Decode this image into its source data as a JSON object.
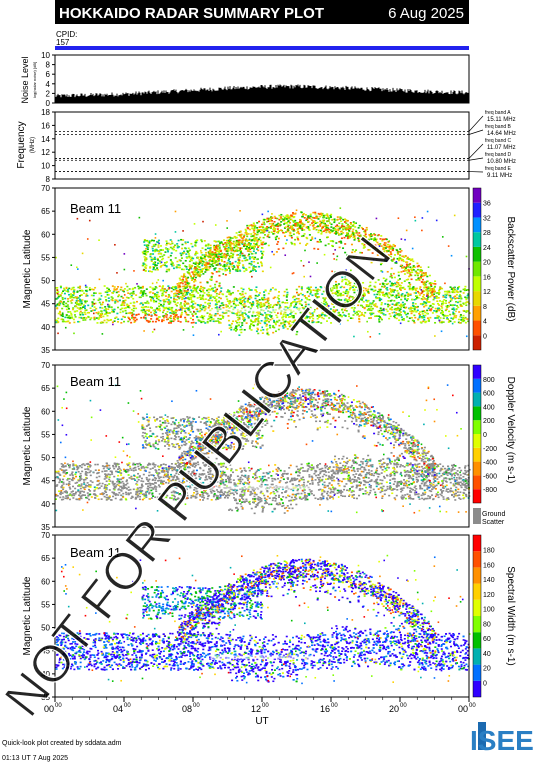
{
  "header": {
    "title": "HOKKAIDO RADAR SUMMARY PLOT",
    "date": "6 Aug 2025",
    "cpid_label": "CPID:",
    "cpid_value": "157"
  },
  "colors": {
    "header_bg": "#000000",
    "cpid_bar": "#2222ee",
    "ground_scatter": "#8c8c8c",
    "watermark": "#000000"
  },
  "watermark": "NOT FOR PUBLICATION",
  "footer": {
    "credit": "Quick-look plot created by sddata.adm",
    "timestamp": "01:13 UT  7 Aug 2025",
    "logo": "ISEE"
  },
  "x_axis": {
    "label": "UT",
    "ticks": [
      "00",
      "04",
      "08",
      "12",
      "16",
      "20",
      "00"
    ],
    "superscript": "00"
  },
  "chart_data": [
    {
      "type": "area",
      "panel": "noise",
      "ylabel": "Noise Level",
      "ylabel_sub": "log(radar noise) [dB]",
      "ylim": [
        0,
        10
      ],
      "yticks": [
        "0",
        "2",
        "4",
        "6",
        "8",
        "10"
      ],
      "x": [
        0,
        2,
        4,
        6,
        8,
        10,
        12,
        14,
        16,
        18,
        20,
        22,
        24
      ],
      "values": [
        1.0,
        1.2,
        1.4,
        1.8,
        2.2,
        2.6,
        2.9,
        3.0,
        2.8,
        2.5,
        2.2,
        1.9,
        1.7
      ]
    },
    {
      "type": "line",
      "panel": "frequency",
      "ylabel": "Frequency",
      "ylabel_sub": "(MHz)",
      "ylim": [
        8,
        18
      ],
      "yticks": [
        "8",
        "10",
        "12",
        "14",
        "16",
        "18"
      ],
      "bands": [
        {
          "name": "freq band A",
          "value": "15.11 MHz",
          "mhz": 15.11
        },
        {
          "name": "freq band B",
          "value": "14.64 MHz",
          "mhz": 14.64
        },
        {
          "name": "freq band C",
          "value": "11.07 MHz",
          "mhz": 11.07
        },
        {
          "name": "freq band D",
          "value": "10.80 MHz",
          "mhz": 10.8
        },
        {
          "name": "freq band E",
          "value": "9.11 MHz",
          "mhz": 9.11
        }
      ]
    },
    {
      "type": "heatmap",
      "panel": "power",
      "beam": "Beam 11",
      "ylabel": "Magnetic Latitude",
      "ylim": [
        35,
        70
      ],
      "yticks": [
        "35",
        "40",
        "45",
        "50",
        "55",
        "60",
        "65",
        "70"
      ],
      "colorbar_label": "Backscatter Power (dB)",
      "colorbar_ticks": [
        "0",
        "4",
        "8",
        "12",
        "16",
        "20",
        "24",
        "28",
        "32",
        "36"
      ],
      "colorbar_colors": [
        "#cc2000",
        "#ff5000",
        "#ffa000",
        "#e8d800",
        "#c0ff00",
        "#70e800",
        "#10c000",
        "#00c8a0",
        "#0090ff",
        "#2020ff",
        "#7000c0"
      ]
    },
    {
      "type": "heatmap",
      "panel": "velocity",
      "beam": "Beam 11",
      "ylabel": "Magnetic Latitude",
      "ylim": [
        35,
        70
      ],
      "yticks": [
        "35",
        "40",
        "45",
        "50",
        "55",
        "60",
        "65",
        "70"
      ],
      "colorbar_label": "Doppler Velocity (m s-1)",
      "colorbar_ticks": [
        "-800",
        "-600",
        "-400",
        "-200",
        "0",
        "200",
        "400",
        "600",
        "800"
      ],
      "colorbar_colors": [
        "#ff0000",
        "#ff5000",
        "#ff9000",
        "#ffd000",
        "#e0ff00",
        "#80ff00",
        "#00c000",
        "#00b0b0",
        "#0070ff",
        "#3000ff"
      ],
      "ground_scatter_label": "Ground Scatter"
    },
    {
      "type": "heatmap",
      "panel": "width",
      "beam": "Beam 11",
      "ylabel": "Magnetic Latitude",
      "ylim": [
        35,
        70
      ],
      "yticks": [
        "35",
        "40",
        "45",
        "50",
        "55",
        "60",
        "65",
        "70"
      ],
      "colorbar_label": "Spectral Width (m s-1)",
      "colorbar_ticks": [
        "0",
        "20",
        "40",
        "60",
        "80",
        "100",
        "120",
        "140",
        "160",
        "180"
      ],
      "colorbar_colors": [
        "#3000ff",
        "#0070ff",
        "#00b0b0",
        "#00c000",
        "#80ff00",
        "#e0ff00",
        "#ffd000",
        "#ff9000",
        "#ff5000",
        "#ff0000"
      ]
    }
  ]
}
